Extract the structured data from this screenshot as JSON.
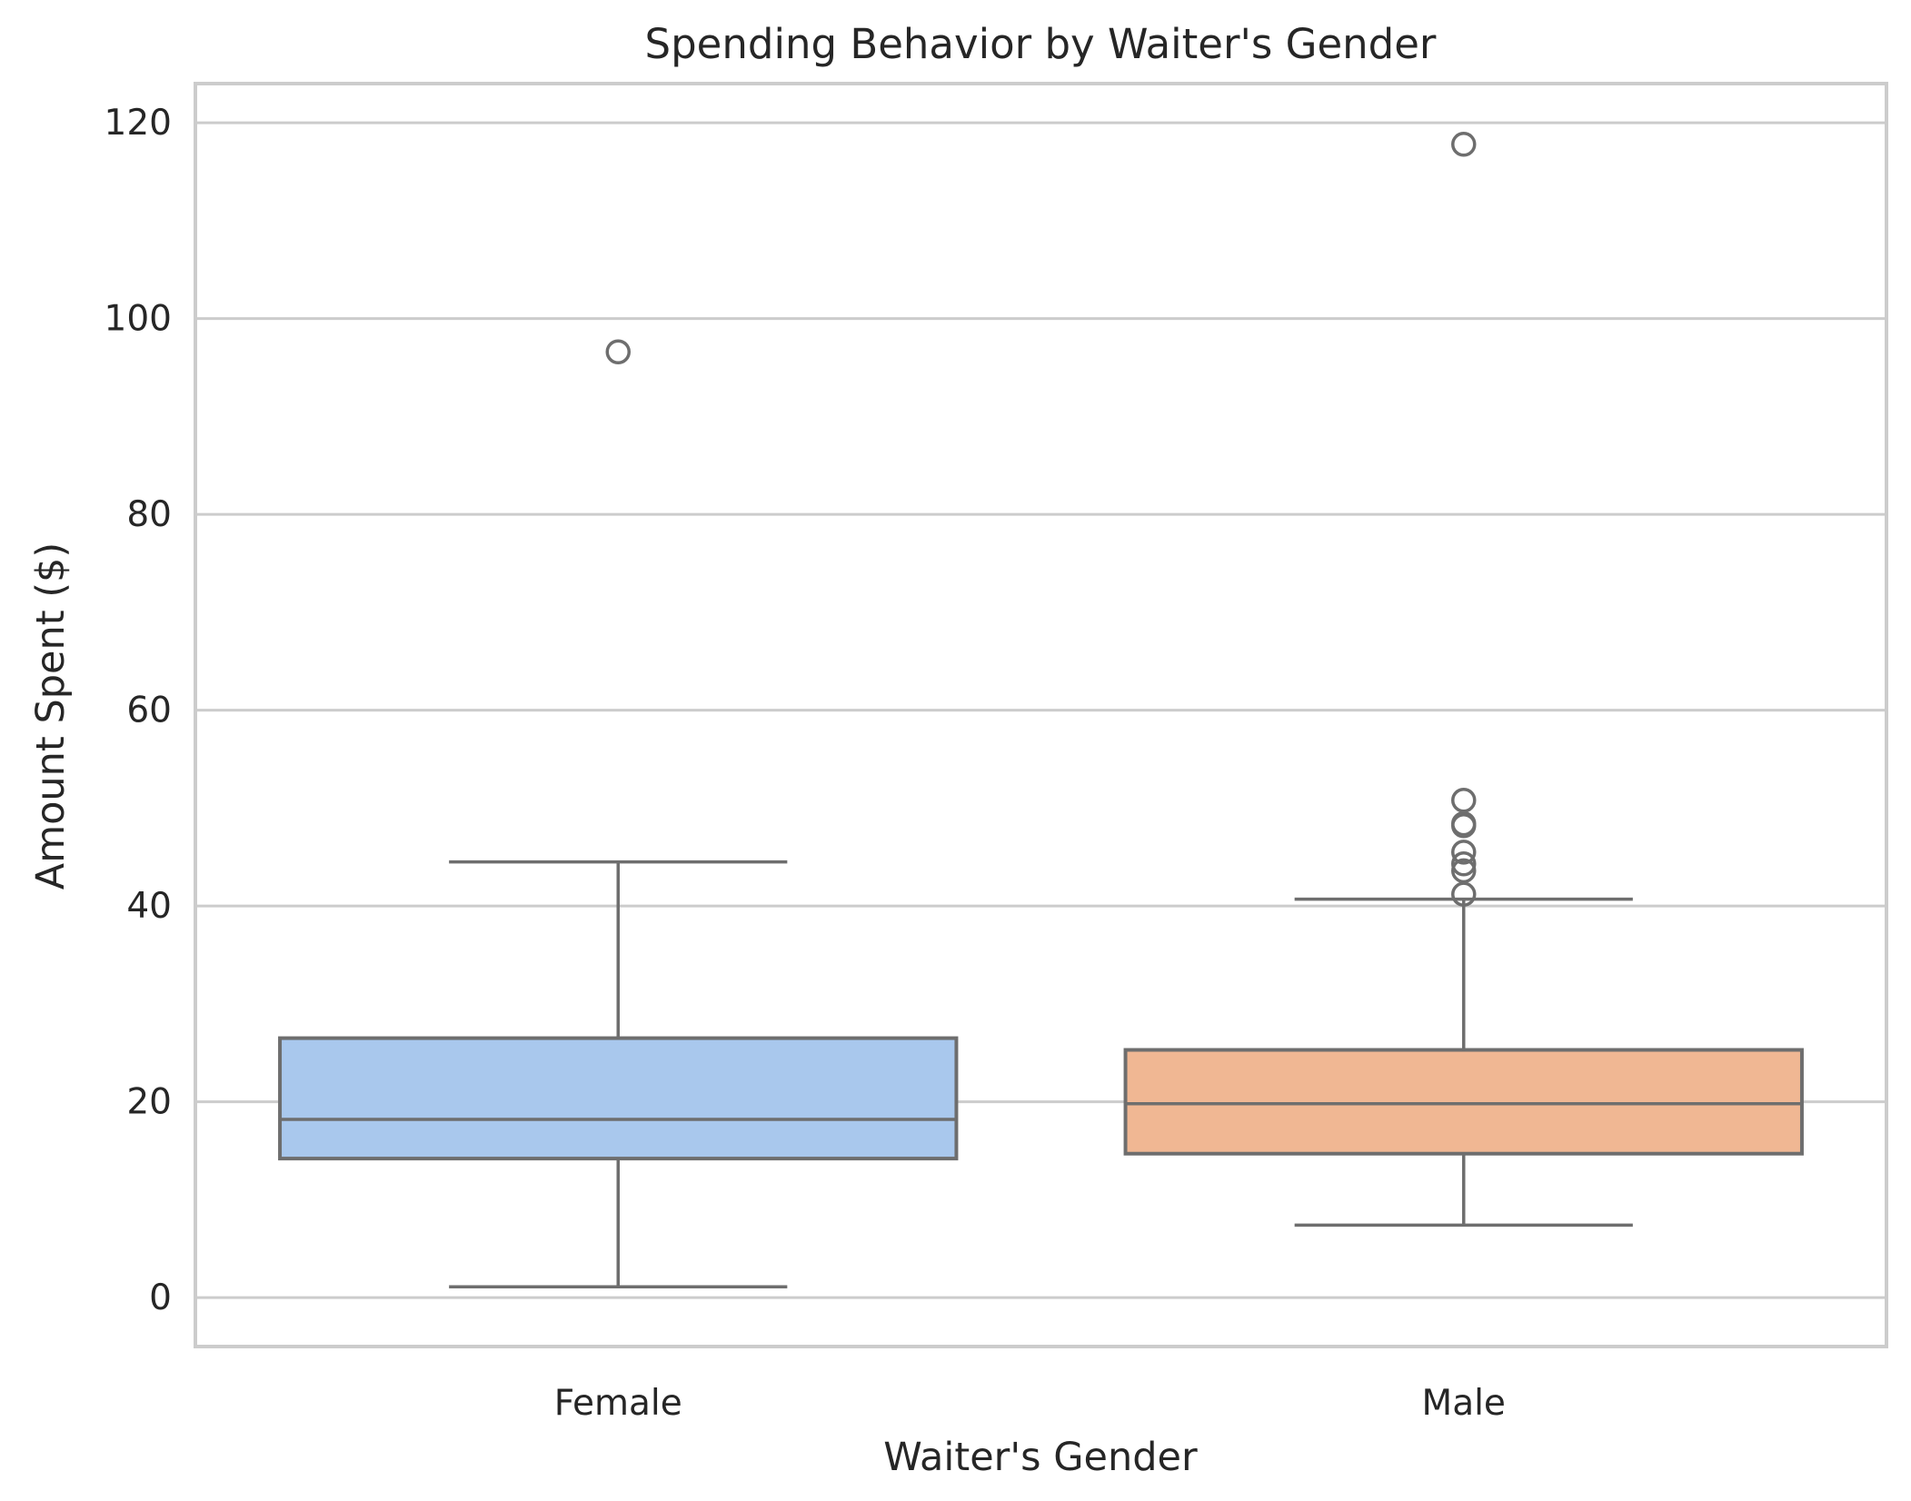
{
  "chart_data": {
    "type": "box",
    "title": "Spending Behavior by Waiter's Gender",
    "xlabel": "Waiter's Gender",
    "ylabel": "Amount Spent ($)",
    "categories": [
      "Female",
      "Male"
    ],
    "ylim": [
      -5,
      124
    ],
    "yticks": [
      0,
      20,
      40,
      60,
      80,
      100,
      120
    ],
    "grid": "horizontal",
    "boxes": [
      {
        "category": "Female",
        "color": "#a9c8ed",
        "whisker_low": 1.1,
        "q1": 14.2,
        "median": 18.2,
        "q3": 26.5,
        "whisker_high": 44.5,
        "outliers": [
          96.6
        ]
      },
      {
        "category": "Male",
        "color": "#f0b793",
        "whisker_low": 7.4,
        "q1": 14.7,
        "median": 19.8,
        "q3": 25.3,
        "whisker_high": 40.7,
        "outliers": [
          41.2,
          43.6,
          44.3,
          45.5,
          48.2,
          48.4,
          50.8,
          117.8
        ]
      }
    ]
  }
}
